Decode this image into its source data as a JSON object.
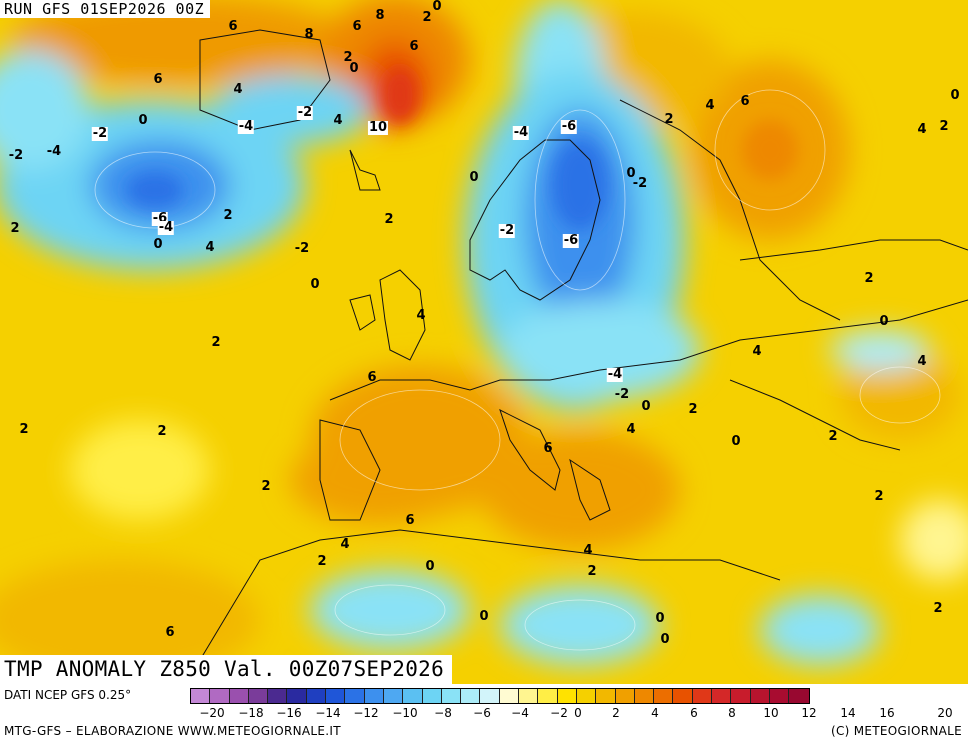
{
  "header": {
    "run": "RUN GFS 01SEP2026 00Z",
    "variable": "TMP ANOMALY Z850 Val. 00Z07SEP2026"
  },
  "footer": {
    "source": "DATI NCEP GFS 0.25°",
    "credit_left": "MTG-GFS – ELABORAZIONE WWW.METEOGIORNALE.IT",
    "credit_right": "(C) METEOGIORNALE"
  },
  "colorbar": {
    "colors": [
      "#c488d6",
      "#b06ac2",
      "#9a50ae",
      "#7a3c9a",
      "#4b2a90",
      "#2a2aa0",
      "#1f3fc0",
      "#1f56d8",
      "#2b72e6",
      "#3d90ee",
      "#4ea8f2",
      "#5bc0f2",
      "#6dd4f4",
      "#8ae2f6",
      "#acecf8",
      "#d2f4fa",
      "#fffbd2",
      "#fff590",
      "#ffee46",
      "#ffe200",
      "#f5d000",
      "#f2b800",
      "#f0a000",
      "#ee8800",
      "#ec6e00",
      "#e85200",
      "#e03818",
      "#d42828",
      "#c81c2c",
      "#b8142e",
      "#a80c30",
      "#980830"
    ],
    "tick_labels": [
      "−20",
      "−18",
      "−16",
      "−14",
      "−12",
      "−10",
      "−8",
      "−6",
      "−4",
      "−2",
      "0",
      "2",
      "4",
      "6",
      "8",
      "10",
      "12",
      "14",
      "16",
      "20"
    ]
  },
  "contour_labels": [
    {
      "t": "6",
      "box": false
    },
    {
      "t": "8",
      "box": false
    },
    {
      "t": "8",
      "box": false
    },
    {
      "t": "6",
      "box": false
    },
    {
      "t": "6",
      "box": false
    },
    {
      "t": "2",
      "box": false
    },
    {
      "t": "0",
      "box": false
    },
    {
      "t": "6",
      "box": false
    },
    {
      "t": "4",
      "box": false
    },
    {
      "t": "-2",
      "box": true
    },
    {
      "t": "-4",
      "box": true
    },
    {
      "t": "2",
      "box": false
    },
    {
      "t": "0",
      "box": false
    },
    {
      "t": "4",
      "box": false
    },
    {
      "t": "10",
      "box": true
    },
    {
      "t": "0",
      "box": false
    },
    {
      "t": "-2",
      "box": true
    },
    {
      "t": "-2",
      "box": false
    },
    {
      "t": "-4",
      "box": false
    },
    {
      "t": "-6",
      "box": true
    },
    {
      "t": "-4",
      "box": true
    },
    {
      "t": "0",
      "box": false
    },
    {
      "t": "2",
      "box": false
    },
    {
      "t": "2",
      "box": false
    },
    {
      "t": "4",
      "box": false
    },
    {
      "t": "-2",
      "box": false
    },
    {
      "t": "0",
      "box": false
    },
    {
      "t": "2",
      "box": false
    },
    {
      "t": "-4",
      "box": true
    },
    {
      "t": "-6",
      "box": true
    },
    {
      "t": "0",
      "box": false
    },
    {
      "t": "-2",
      "box": true
    },
    {
      "t": "-2",
      "box": false
    },
    {
      "t": "0",
      "box": false
    },
    {
      "t": "-6",
      "box": true
    },
    {
      "t": "2",
      "box": false
    },
    {
      "t": "4",
      "box": false
    },
    {
      "t": "6",
      "box": false
    },
    {
      "t": "0",
      "box": false
    },
    {
      "t": "4",
      "box": false
    },
    {
      "t": "2",
      "box": false
    },
    {
      "t": "2",
      "box": false
    },
    {
      "t": "4",
      "box": false
    },
    {
      "t": "0",
      "box": false
    },
    {
      "t": "6",
      "box": false
    },
    {
      "t": "2",
      "box": false
    },
    {
      "t": "2",
      "box": false
    },
    {
      "t": "4",
      "box": false
    },
    {
      "t": "-4",
      "box": true
    },
    {
      "t": "-2",
      "box": false
    },
    {
      "t": "0",
      "box": false
    },
    {
      "t": "2",
      "box": false
    },
    {
      "t": "4",
      "box": false
    },
    {
      "t": "0",
      "box": false
    },
    {
      "t": "2",
      "box": false
    },
    {
      "t": "6",
      "box": false
    },
    {
      "t": "2",
      "box": false
    },
    {
      "t": "6",
      "box": false
    },
    {
      "t": "2",
      "box": false
    },
    {
      "t": "4",
      "box": false
    },
    {
      "t": "0",
      "box": false
    },
    {
      "t": "4",
      "box": false
    },
    {
      "t": "2",
      "box": false
    },
    {
      "t": "2",
      "box": false
    },
    {
      "t": "0",
      "box": false
    },
    {
      "t": "0",
      "box": false
    },
    {
      "t": "0",
      "box": false
    },
    {
      "t": "6",
      "box": false
    },
    {
      "t": "2",
      "box": false
    },
    {
      "t": "4",
      "box": false
    },
    {
      "t": "2",
      "box": false
    }
  ]
}
